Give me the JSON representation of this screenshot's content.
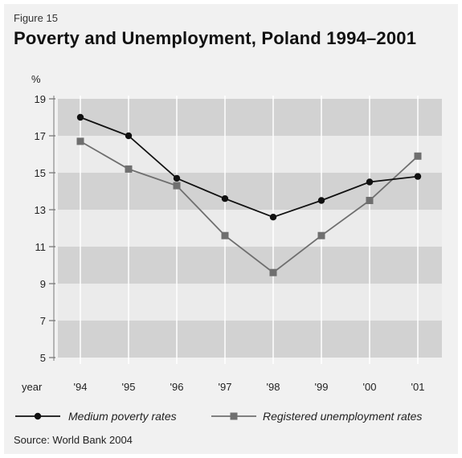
{
  "figure_label": "Figure 15",
  "title": "Poverty and Unemployment, Poland 1994–2001",
  "source": "Source: World Bank 2004",
  "chart_data": {
    "type": "line",
    "title": "Poverty and Unemployment, Poland 1994–2001",
    "ylabel": "%",
    "xlabel": "year",
    "categories": [
      "'94",
      "'95",
      "'96",
      "'97",
      "'98",
      "'99",
      "'00",
      "'01"
    ],
    "ylim": [
      5,
      19
    ],
    "yticks": [
      5,
      7,
      9,
      11,
      13,
      15,
      17,
      19
    ],
    "series": [
      {
        "name": "Medium poverty rates",
        "marker": "circle",
        "color": "#111111",
        "values": [
          18.0,
          17.0,
          14.7,
          13.6,
          12.6,
          13.5,
          14.5,
          14.8
        ]
      },
      {
        "name": "Registered unemployment rates",
        "marker": "square",
        "color": "#6f6f6f",
        "values": [
          16.7,
          15.2,
          14.3,
          11.6,
          9.6,
          11.6,
          13.5,
          15.9
        ]
      }
    ],
    "grid": "alternating horizontal bands",
    "legend": "bottom"
  }
}
